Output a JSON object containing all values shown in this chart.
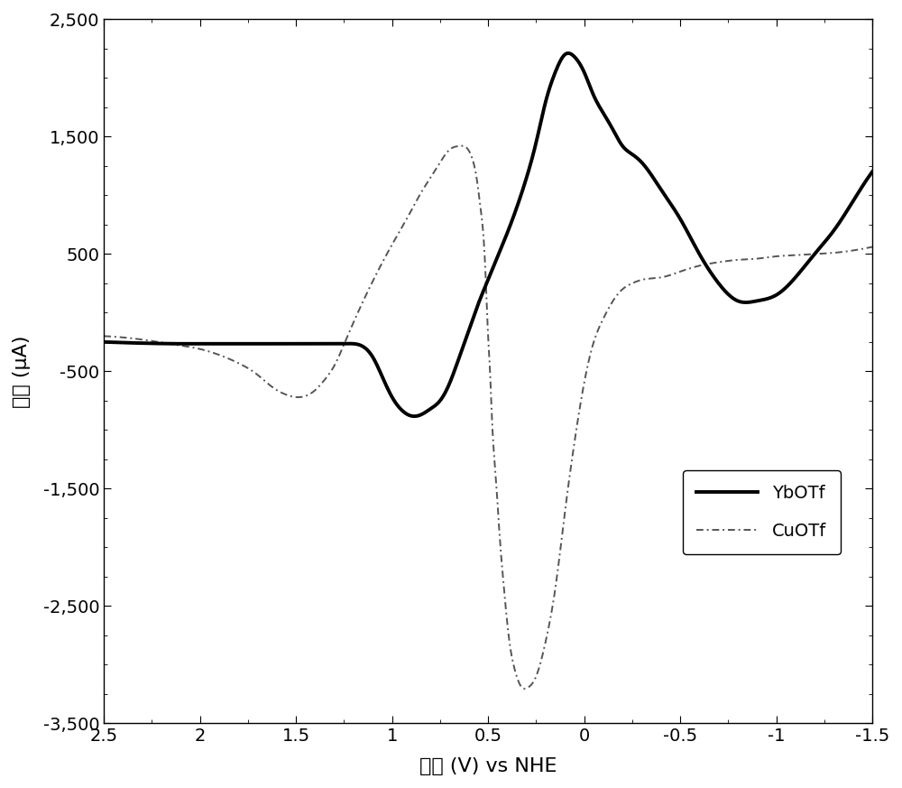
{
  "title": "",
  "xlabel": "电位 (V) vs NHE",
  "ylabel": "电流 (μA)",
  "xlim": [
    2.5,
    -1.5
  ],
  "ylim": [
    -3500,
    2500
  ],
  "xticks": [
    2.5,
    2.0,
    1.5,
    1.0,
    0.5,
    0.0,
    -0.5,
    -1.0,
    -1.5
  ],
  "yticks": [
    -3500,
    -2500,
    -1500,
    -500,
    500,
    1500,
    2500
  ],
  "ytick_labels": [
    "-3,500",
    "-2,500",
    "-1,500",
    "-500",
    "500",
    "1,500",
    "2,500"
  ],
  "xtick_labels": [
    "2.5",
    "2",
    "1.5",
    "1",
    "0.5",
    "0",
    "-0.5",
    "-1",
    "-1.5"
  ],
  "background_color": "#ffffff",
  "yb_color": "#000000",
  "cu_color": "#555555",
  "yb_linewidth": 2.8,
  "cu_linewidth": 1.4,
  "legend_yb": "YbOTf",
  "legend_cu": "CuOTf",
  "font_size": 14,
  "yb_x": [
    2.5,
    2.3,
    2.1,
    2.0,
    1.9,
    1.8,
    1.7,
    1.6,
    1.55,
    1.5,
    1.45,
    1.4,
    1.35,
    1.3,
    1.25,
    1.2,
    1.15,
    1.1,
    1.05,
    1.0,
    0.95,
    0.9,
    0.85,
    0.8,
    0.75,
    0.7,
    0.65,
    0.6,
    0.55,
    0.5,
    0.45,
    0.4,
    0.35,
    0.3,
    0.25,
    0.2,
    0.15,
    0.1,
    0.05,
    0.0,
    -0.05,
    -0.1,
    -0.15,
    -0.2,
    -0.25,
    -0.3,
    -0.4,
    -0.5,
    -0.6,
    -0.7,
    -0.8,
    -0.9,
    -1.0,
    -1.1,
    -1.2,
    -1.3,
    -1.4,
    -1.5
  ],
  "yb_y": [
    -250,
    -260,
    -265,
    -265,
    -265,
    -265,
    -265,
    -265,
    -265,
    -265,
    -265,
    -265,
    -265,
    -265,
    -265,
    -265,
    -290,
    -380,
    -550,
    -720,
    -830,
    -880,
    -870,
    -820,
    -750,
    -600,
    -380,
    -150,
    80,
    280,
    480,
    680,
    900,
    1150,
    1450,
    1800,
    2050,
    2200,
    2180,
    2050,
    1850,
    1700,
    1560,
    1420,
    1350,
    1280,
    1050,
    800,
    500,
    250,
    100,
    100,
    150,
    300,
    500,
    700,
    950,
    1200
  ],
  "cu_x": [
    2.5,
    2.3,
    2.1,
    2.0,
    1.9,
    1.8,
    1.7,
    1.65,
    1.6,
    1.55,
    1.5,
    1.45,
    1.4,
    1.35,
    1.3,
    1.25,
    1.2,
    1.1,
    1.0,
    0.9,
    0.85,
    0.8,
    0.75,
    0.7,
    0.65,
    0.6,
    0.58,
    0.56,
    0.54,
    0.52,
    0.51,
    0.5,
    0.49,
    0.48,
    0.46,
    0.44,
    0.42,
    0.4,
    0.38,
    0.36,
    0.34,
    0.32,
    0.3,
    0.25,
    0.2,
    0.15,
    0.1,
    0.05,
    0.0,
    -0.05,
    -0.1,
    -0.15,
    -0.2,
    -0.25,
    -0.3,
    -0.4,
    -0.5,
    -0.6,
    -0.7,
    -0.8,
    -0.9,
    -1.0,
    -1.1,
    -1.2,
    -1.3,
    -1.4,
    -1.5
  ],
  "cu_y": [
    -200,
    -230,
    -280,
    -310,
    -360,
    -430,
    -530,
    -600,
    -660,
    -700,
    -720,
    -710,
    -660,
    -570,
    -450,
    -270,
    -80,
    270,
    580,
    870,
    1020,
    1150,
    1280,
    1390,
    1420,
    1380,
    1300,
    1150,
    900,
    550,
    200,
    -200,
    -500,
    -900,
    -1400,
    -1900,
    -2300,
    -2650,
    -2900,
    -3050,
    -3150,
    -3200,
    -3200,
    -3100,
    -2800,
    -2350,
    -1700,
    -1100,
    -600,
    -250,
    -50,
    100,
    200,
    250,
    280,
    300,
    350,
    400,
    430,
    450,
    460,
    480,
    490,
    500,
    510,
    530,
    560
  ]
}
